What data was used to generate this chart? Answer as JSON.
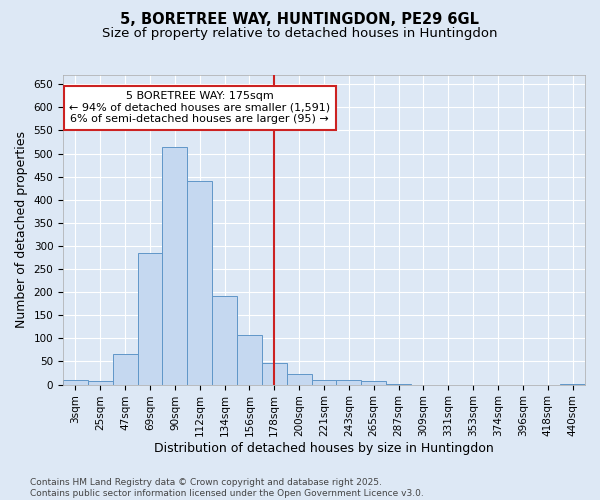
{
  "title1": "5, BORETREE WAY, HUNTINGDON, PE29 6GL",
  "title2": "Size of property relative to detached houses in Huntingdon",
  "xlabel": "Distribution of detached houses by size in Huntingdon",
  "ylabel": "Number of detached properties",
  "bin_labels": [
    "3sqm",
    "25sqm",
    "47sqm",
    "69sqm",
    "90sqm",
    "112sqm",
    "134sqm",
    "156sqm",
    "178sqm",
    "200sqm",
    "221sqm",
    "243sqm",
    "265sqm",
    "287sqm",
    "309sqm",
    "331sqm",
    "353sqm",
    "374sqm",
    "396sqm",
    "418sqm",
    "440sqm"
  ],
  "bar_values": [
    10,
    8,
    67,
    285,
    515,
    440,
    192,
    107,
    47,
    22,
    10,
    10,
    8,
    2,
    0,
    0,
    0,
    0,
    0,
    0,
    2
  ],
  "bar_color": "#c5d8f0",
  "bar_edge_color": "#6096c8",
  "vline_x_index": 8,
  "vline_color": "#cc2222",
  "annotation_title": "5 BORETREE WAY: 175sqm",
  "annotation_line1": "← 94% of detached houses are smaller (1,591)",
  "annotation_line2": "6% of semi-detached houses are larger (95) →",
  "annotation_box_color": "#ffffff",
  "annotation_box_edge": "#cc2222",
  "ylim": [
    0,
    670
  ],
  "yticks": [
    0,
    50,
    100,
    150,
    200,
    250,
    300,
    350,
    400,
    450,
    500,
    550,
    600,
    650
  ],
  "footer1": "Contains HM Land Registry data © Crown copyright and database right 2025.",
  "footer2": "Contains public sector information licensed under the Open Government Licence v3.0.",
  "bg_color": "#dde8f5",
  "plot_bg_color": "#dde8f5",
  "grid_color": "#ffffff",
  "title_fontsize": 10.5,
  "subtitle_fontsize": 9.5,
  "axis_label_fontsize": 9,
  "tick_fontsize": 7.5,
  "annotation_fontsize": 8,
  "footer_fontsize": 6.5
}
